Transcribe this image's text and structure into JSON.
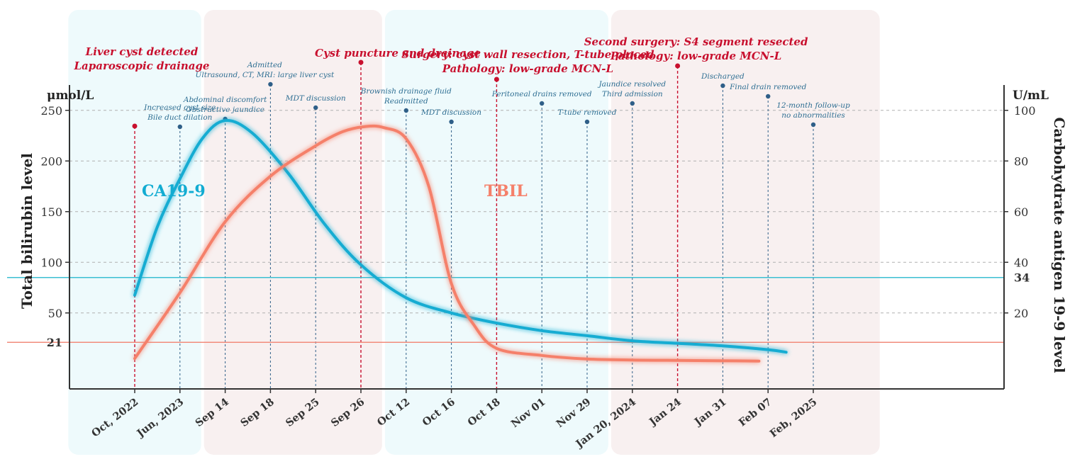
{
  "chart_data": {
    "type": "line",
    "left_axis": {
      "title": "Total bilirubin level",
      "unit": "μmol/L",
      "ylim": [
        -25,
        275
      ],
      "ticks": [
        50,
        100,
        150,
        200,
        250
      ],
      "reference": {
        "value": 21,
        "label": "21",
        "color": "#f28c7c"
      }
    },
    "right_axis": {
      "title": "Carbohydrate antigen 19-9 level",
      "unit": "U/mL",
      "ylim": [
        -10,
        110
      ],
      "ticks": [
        20,
        40,
        60,
        80,
        100
      ],
      "reference": {
        "value": 34,
        "label": "34",
        "color": "#3bbfd2"
      }
    },
    "categories": [
      "Oct, 2022",
      "Jun, 2023",
      "Sep 14",
      "Sep 18",
      "Sep 25",
      "Sep 26",
      "Oct 12",
      "Oct 16",
      "Oct 18",
      "Nov 01",
      "Nov 29",
      "Jan 20, 2024",
      "Jan 24",
      "Jan 31",
      "Feb 07",
      "Feb, 2025"
    ],
    "series": [
      {
        "name": "CA19-9",
        "axis": "right",
        "color": "#12acd2",
        "x": [
          0,
          0.5,
          1,
          1.5,
          2,
          2.6,
          3.4,
          4.2,
          5,
          6,
          7,
          8,
          9,
          10,
          11,
          12,
          13,
          14,
          14.4
        ],
        "values": [
          27,
          54,
          73,
          89,
          96,
          91,
          75,
          55,
          39,
          26,
          20,
          16,
          13,
          11,
          9,
          8,
          7,
          5.5,
          4.5
        ]
      },
      {
        "name": "TBIL",
        "axis": "left",
        "color": "#f5806a",
        "x": [
          0,
          1,
          2,
          3,
          4,
          4.6,
          5.1,
          5.5,
          6,
          6.5,
          7,
          7.5,
          8,
          9,
          10,
          11,
          12,
          12.4,
          13.3,
          13.8
        ],
        "values": [
          5,
          70,
          140,
          185,
          215,
          229,
          234,
          233,
          222,
          175,
          79,
          38,
          15,
          8,
          4.5,
          3.5,
          3.2,
          3.0,
          2.7,
          2.5
        ]
      }
    ],
    "series_labels": {
      "ca199": "CA19-9",
      "tbil": "TBIL"
    },
    "events": [
      {
        "lines": [
          "Liver cyst detected",
          "Laparoscopic drainage"
        ],
        "type": "major",
        "x": 0
      },
      {
        "lines": [
          "Increased cyst size",
          "Bile duct dilation"
        ],
        "type": "minor",
        "x": 1
      },
      {
        "lines": [
          "Abdominal discomfort",
          "Obstructive jaundice"
        ],
        "type": "minor",
        "x": 2
      },
      {
        "lines": [
          "Admitted",
          "Ultrasound, CT, MRI: large liver cyst"
        ],
        "type": "minor",
        "x": 3
      },
      {
        "lines": [
          "MDT discussion"
        ],
        "type": "minor",
        "x": 4
      },
      {
        "lines": [
          "Cyst puncture and drainage"
        ],
        "type": "major",
        "x": 5
      },
      {
        "lines": [
          "Brownish drainage fluid",
          "Readmitted"
        ],
        "type": "minor",
        "x": 6
      },
      {
        "lines": [
          "MDT discussion"
        ],
        "type": "minor",
        "x": 7
      },
      {
        "lines": [
          "Surgery: cyst wall resection, T-tube placed",
          "Pathology: low-grade MCN-L"
        ],
        "type": "major",
        "x": 8
      },
      {
        "lines": [
          "Peritoneal drains removed"
        ],
        "type": "minor",
        "x": 9
      },
      {
        "lines": [
          "T-tube removed"
        ],
        "type": "minor",
        "x": 10
      },
      {
        "lines": [
          "Jaundice resolved",
          "Third admission"
        ],
        "type": "minor",
        "x": 11
      },
      {
        "lines": [
          "Second surgery: S4 segment resected",
          "Pathology: low-grade MCN-L"
        ],
        "type": "major",
        "x": 12
      },
      {
        "lines": [
          "Discharged"
        ],
        "type": "minor",
        "x": 13
      },
      {
        "lines": [
          "Final drain removed"
        ],
        "type": "minor",
        "x": 14
      },
      {
        "lines": [
          "12-month follow-up",
          "no abnormalities"
        ],
        "type": "minor",
        "x": 15
      }
    ],
    "phases": [
      {
        "from": -1.5,
        "to": 1.5,
        "color": "#eefafc"
      },
      {
        "from": 1.5,
        "to": 5.5,
        "color": "#f8f0f0"
      },
      {
        "from": 5.5,
        "to": 10.5,
        "color": "#eefafc"
      },
      {
        "from": 10.5,
        "to": 16.5,
        "color": "#f8f0f0"
      }
    ],
    "colors": {
      "major": "#c8102e",
      "minor": "#2f5f88",
      "grid": "#b0b0b0",
      "axis": "#333333"
    }
  }
}
